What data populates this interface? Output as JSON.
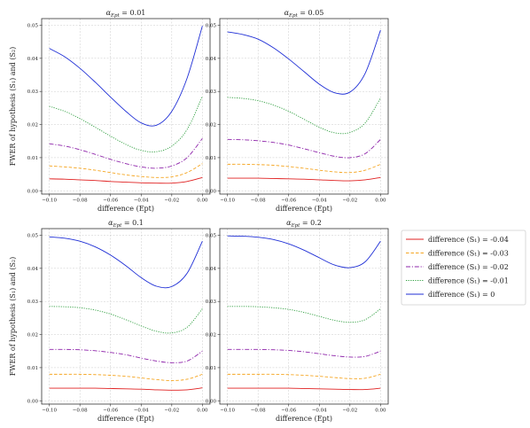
{
  "chart_data": {
    "type": "line",
    "ylabel": "FWER of hypothesis (S₁) and (S₂)",
    "xlabel": "difference (Ept)",
    "xlim": [
      -0.105,
      0.005
    ],
    "ylim": [
      -0.001,
      0.052
    ],
    "xticks": [
      -0.1,
      -0.08,
      -0.06,
      -0.04,
      -0.02,
      0.0
    ],
    "xtick_labels": [
      "−0.10",
      "−0.08",
      "−0.06",
      "−0.04",
      "−0.02",
      "0.00"
    ],
    "yticks": [
      0.0,
      0.01,
      0.02,
      0.03,
      0.04,
      0.05
    ],
    "ytick_labels": [
      "0.00",
      "0.01",
      "0.02",
      "0.03",
      "0.04",
      "0.05"
    ],
    "grid": true,
    "legend": {
      "placement": "right",
      "entries": [
        {
          "label": "difference (S₁) = -0.04",
          "color": "#e02020",
          "dash": "solid"
        },
        {
          "label": "difference (S₁) = -0.03",
          "color": "#f5a623",
          "dash": "dashed"
        },
        {
          "label": "difference (S₁) = -0.02",
          "color": "#8e24aa",
          "dash": "dashdot"
        },
        {
          "label": "difference (S₁) = -0.01",
          "color": "#2e9e3e",
          "dash": "dotted"
        },
        {
          "label": "difference (S₁) = 0",
          "color": "#1f2fd6",
          "dash": "solid"
        }
      ]
    },
    "panels": [
      {
        "title": "α_Ept = 0.01",
        "title_prefix": "α",
        "title_sub": "Ept",
        "title_value": " = 0.01",
        "x": [
          -0.1,
          -0.09,
          -0.08,
          -0.07,
          -0.06,
          -0.05,
          -0.04,
          -0.03,
          -0.02,
          -0.01,
          0.0
        ],
        "series": [
          {
            "values": [
              0.0036,
              0.0035,
              0.0033,
              0.0031,
              0.0028,
              0.0026,
              0.0024,
              0.0023,
              0.0023,
              0.0028,
              0.004
            ]
          },
          {
            "values": [
              0.0075,
              0.0072,
              0.0068,
              0.0062,
              0.0055,
              0.0048,
              0.0043,
              0.004,
              0.0042,
              0.0055,
              0.0082
            ]
          },
          {
            "values": [
              0.0142,
              0.0135,
              0.0124,
              0.011,
              0.0095,
              0.0082,
              0.0072,
              0.0068,
              0.0075,
              0.01,
              0.0158
            ]
          },
          {
            "values": [
              0.0255,
              0.024,
              0.0218,
              0.0192,
              0.0165,
              0.014,
              0.0122,
              0.0118,
              0.0135,
              0.0185,
              0.0285
            ]
          },
          {
            "values": [
              0.043,
              0.0405,
              0.037,
              0.0328,
              0.0283,
              0.024,
              0.0205,
              0.0198,
              0.024,
              0.034,
              0.0498
            ]
          }
        ]
      },
      {
        "title": "α_Ept = 0.05",
        "title_prefix": "α",
        "title_sub": "Ept",
        "title_value": " = 0.05",
        "x": [
          -0.1,
          -0.09,
          -0.08,
          -0.07,
          -0.06,
          -0.05,
          -0.04,
          -0.03,
          -0.02,
          -0.01,
          0.0
        ],
        "series": [
          {
            "values": [
              0.0038,
              0.0038,
              0.0038,
              0.0037,
              0.0036,
              0.0035,
              0.0033,
              0.0031,
              0.003,
              0.0033,
              0.004
            ]
          },
          {
            "values": [
              0.008,
              0.008,
              0.0079,
              0.0077,
              0.0073,
              0.0068,
              0.0062,
              0.0057,
              0.0055,
              0.0062,
              0.008
            ]
          },
          {
            "values": [
              0.0155,
              0.0154,
              0.0151,
              0.0146,
              0.0138,
              0.0127,
              0.0115,
              0.0104,
              0.01,
              0.0112,
              0.0155
            ]
          },
          {
            "values": [
              0.0282,
              0.0279,
              0.0272,
              0.0259,
              0.024,
              0.0216,
              0.0192,
              0.0175,
              0.0176,
              0.0205,
              0.028
            ]
          },
          {
            "values": [
              0.048,
              0.0472,
              0.0458,
              0.0432,
              0.0398,
              0.036,
              0.0322,
              0.0296,
              0.0298,
              0.0355,
              0.0485
            ]
          }
        ]
      },
      {
        "title": "α_Ept = 0.1",
        "title_prefix": "α",
        "title_sub": "Ept",
        "title_value": " = 0.1",
        "x": [
          -0.1,
          -0.09,
          -0.08,
          -0.07,
          -0.06,
          -0.05,
          -0.04,
          -0.03,
          -0.02,
          -0.01,
          0.0
        ],
        "series": [
          {
            "values": [
              0.0038,
              0.0038,
              0.0038,
              0.0038,
              0.0037,
              0.0036,
              0.0035,
              0.0033,
              0.0032,
              0.0033,
              0.0039
            ]
          },
          {
            "values": [
              0.008,
              0.008,
              0.008,
              0.0079,
              0.0077,
              0.0074,
              0.0069,
              0.0064,
              0.0061,
              0.0065,
              0.008
            ]
          },
          {
            "values": [
              0.0155,
              0.0155,
              0.0154,
              0.0151,
              0.0146,
              0.0139,
              0.0129,
              0.012,
              0.0115,
              0.012,
              0.015
            ]
          },
          {
            "values": [
              0.0285,
              0.0284,
              0.0281,
              0.0274,
              0.0262,
              0.0245,
              0.0226,
              0.021,
              0.0205,
              0.0222,
              0.0278
            ]
          },
          {
            "values": [
              0.0495,
              0.0491,
              0.0482,
              0.0465,
              0.044,
              0.0408,
              0.0372,
              0.0346,
              0.0345,
              0.0385,
              0.0482
            ]
          }
        ]
      },
      {
        "title": "α_Ept = 0.2",
        "title_prefix": "α",
        "title_sub": "Ept",
        "title_value": " = 0.2",
        "x": [
          -0.1,
          -0.09,
          -0.08,
          -0.07,
          -0.06,
          -0.05,
          -0.04,
          -0.03,
          -0.02,
          -0.01,
          0.0
        ],
        "series": [
          {
            "values": [
              0.0038,
              0.0038,
              0.0038,
              0.0038,
              0.0038,
              0.0037,
              0.0036,
              0.0035,
              0.0034,
              0.0034,
              0.0038
            ]
          },
          {
            "values": [
              0.008,
              0.008,
              0.008,
              0.008,
              0.0079,
              0.0077,
              0.0074,
              0.007,
              0.0067,
              0.0068,
              0.008
            ]
          },
          {
            "values": [
              0.0155,
              0.0155,
              0.0155,
              0.0154,
              0.0152,
              0.0148,
              0.0142,
              0.0136,
              0.0132,
              0.0134,
              0.015
            ]
          },
          {
            "values": [
              0.0285,
              0.0285,
              0.0284,
              0.0281,
              0.0276,
              0.0267,
              0.0255,
              0.0243,
              0.0237,
              0.0245,
              0.0278
            ]
          },
          {
            "values": [
              0.0498,
              0.0497,
              0.0494,
              0.0487,
              0.0474,
              0.0455,
              0.0432,
              0.041,
              0.0402,
              0.042,
              0.0482
            ]
          }
        ]
      }
    ]
  }
}
